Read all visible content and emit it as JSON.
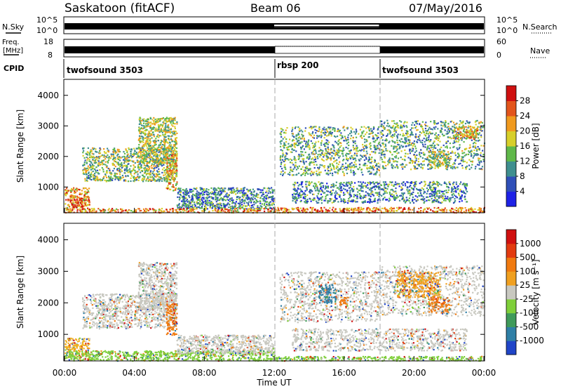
{
  "header": {
    "station": "Saskatoon (fitACF)",
    "beam": "Beam 06",
    "date": "07/May/2016"
  },
  "top_panels": {
    "nsky_label": "N.Sky",
    "nsky_ticks": [
      "10^5",
      "10^0"
    ],
    "nsearch_label": "N.Search",
    "nsearch_ticks": [
      "10^5",
      "10^0"
    ],
    "freq_label_1": "Freq.",
    "freq_label_2": "[MHz]",
    "freq_ticks": [
      "18",
      "8"
    ],
    "nave_label": "Nave",
    "nave_ticks": [
      "60",
      "0"
    ],
    "cpid_label": "CPID",
    "cpid_segments": [
      {
        "label": "twofsound 3503",
        "start_hour": 0,
        "end_hour": 12
      },
      {
        "label": "rbsp 200",
        "start_hour": 12,
        "end_hour": 18
      },
      {
        "label": "twofsound 3503",
        "start_hour": 18,
        "end_hour": 24
      }
    ]
  },
  "chart_data": [
    {
      "type": "heatmap",
      "name": "power",
      "ylabel": "Slant Range [km]",
      "xlabel": "Time UT",
      "ylim": [
        180,
        4500
      ],
      "xlim": [
        0,
        24
      ],
      "y_ticks": [
        1000,
        2000,
        3000,
        4000
      ],
      "x_ticks": [
        "00:00",
        "04:00",
        "08:00",
        "12:00",
        "16:00",
        "20:00",
        "00:00"
      ],
      "colorbar_label": "Power [dB]",
      "colorbar_ticks": [
        "4",
        "8",
        "12",
        "16",
        "20",
        "24",
        "28"
      ],
      "colorbar_colors": [
        "#1e22e6",
        "#2f4fb8",
        "#3f8f8f",
        "#5fb84a",
        "#d7cf2a",
        "#f09a1e",
        "#e2551c",
        "#cf1010"
      ],
      "echo_regions": [
        {
          "t0": 0.0,
          "t1": 1.4,
          "r0": 300,
          "r1": 1000,
          "level": 0.7
        },
        {
          "t0": 0.3,
          "t1": 1.0,
          "r0": 350,
          "r1": 650,
          "level": 0.9
        },
        {
          "t0": 1.0,
          "t1": 6.4,
          "r0": 1200,
          "r1": 2300,
          "level": 0.45
        },
        {
          "t0": 4.2,
          "t1": 6.4,
          "r0": 1800,
          "r1": 3300,
          "level": 0.5
        },
        {
          "t0": 5.8,
          "t1": 6.4,
          "r0": 900,
          "r1": 2100,
          "level": 0.65
        },
        {
          "t0": 6.4,
          "t1": 12.0,
          "r0": 300,
          "r1": 1000,
          "level": 0.3
        },
        {
          "t0": 12.0,
          "t1": 24.0,
          "r0": 180,
          "r1": 350,
          "level": 0.75
        },
        {
          "t0": 0.0,
          "t1": 12.0,
          "r0": 180,
          "r1": 320,
          "level": 0.7
        },
        {
          "t0": 12.3,
          "t1": 18.0,
          "r0": 1400,
          "r1": 3000,
          "level": 0.4
        },
        {
          "t0": 13.0,
          "t1": 23.0,
          "r0": 500,
          "r1": 1200,
          "level": 0.3
        },
        {
          "t0": 18.0,
          "t1": 24.0,
          "r0": 1600,
          "r1": 3200,
          "level": 0.4
        },
        {
          "t0": 22.2,
          "t1": 23.6,
          "r0": 2600,
          "r1": 3000,
          "level": 0.65
        },
        {
          "t0": 20.8,
          "t1": 22.0,
          "r0": 1700,
          "r1": 2200,
          "level": 0.5
        }
      ]
    },
    {
      "type": "heatmap",
      "name": "velocity",
      "ylabel": "Slant Range [km]",
      "xlabel": "Time UT",
      "ylim": [
        180,
        4500
      ],
      "xlim": [
        0,
        24
      ],
      "y_ticks": [
        1000,
        2000,
        3000,
        4000
      ],
      "x_ticks": [
        "00:00",
        "04:00",
        "08:00",
        "12:00",
        "16:00",
        "20:00",
        "00:00"
      ],
      "colorbar_label": "Velocity [m s⁻¹]",
      "colorbar_ticks": [
        "1000",
        "500",
        "100",
        "25",
        "-25",
        "-100",
        "-500",
        "-1000"
      ],
      "colorbar_colors": [
        "#2045c8",
        "#2f7fa6",
        "#3f9a5a",
        "#7fcf3a",
        "#c8c8c0",
        "#f0a020",
        "#f07a10",
        "#e23b10",
        "#d01010"
      ],
      "echo_regions": [
        {
          "t0": 0.0,
          "t1": 1.4,
          "r0": 250,
          "r1": 900,
          "color": "#f0b020"
        },
        {
          "t0": 1.0,
          "t1": 6.4,
          "r0": 1200,
          "r1": 2300,
          "color": "#c8c8c0"
        },
        {
          "t0": 4.2,
          "t1": 6.4,
          "r0": 1800,
          "r1": 3300,
          "color": "#c8c8c0"
        },
        {
          "t0": 5.8,
          "t1": 6.4,
          "r0": 1000,
          "r1": 2000,
          "color": "#f07a10"
        },
        {
          "t0": 0.0,
          "t1": 12.0,
          "r0": 180,
          "r1": 500,
          "color": "#7fcf3a"
        },
        {
          "t0": 6.4,
          "t1": 12.0,
          "r0": 400,
          "r1": 1000,
          "color": "#c8c8c0"
        },
        {
          "t0": 12.0,
          "t1": 24.0,
          "r0": 180,
          "r1": 320,
          "color": "#7fcf3a"
        },
        {
          "t0": 12.3,
          "t1": 18.0,
          "r0": 1400,
          "r1": 3000,
          "color": "#c8c8c0"
        },
        {
          "t0": 13.0,
          "t1": 23.0,
          "r0": 500,
          "r1": 1200,
          "color": "#c8c8c0"
        },
        {
          "t0": 14.5,
          "t1": 15.5,
          "r0": 2000,
          "r1": 2600,
          "color": "#2f7fa6"
        },
        {
          "t0": 15.7,
          "t1": 16.2,
          "r0": 1900,
          "r1": 2200,
          "color": "#f07a10"
        },
        {
          "t0": 18.0,
          "t1": 24.0,
          "r0": 1600,
          "r1": 3200,
          "color": "#c8c8c0"
        },
        {
          "t0": 19.0,
          "t1": 21.5,
          "r0": 2200,
          "r1": 3000,
          "color": "#f0a020"
        },
        {
          "t0": 20.8,
          "t1": 22.0,
          "r0": 1700,
          "r1": 2200,
          "color": "#f07a10"
        }
      ]
    }
  ]
}
